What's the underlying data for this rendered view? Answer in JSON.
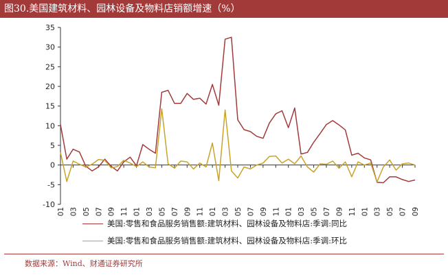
{
  "figure": {
    "title": "图30.美国建筑材料、园林设备及物料店销额增速（%）",
    "source": "数据来源：Wind、财通证券研究所"
  },
  "colors": {
    "title_bg": "#a23a3a",
    "series_yoy": "#a23a3a",
    "series_mom": "#c8a328"
  },
  "chart_data": {
    "type": "line",
    "title": "",
    "xlabel": "",
    "ylabel": "",
    "ylim": [
      -10,
      35
    ],
    "yticks": [
      -10,
      -5,
      0,
      5,
      10,
      15,
      20,
      25,
      30,
      35
    ],
    "xtick_labels": [
      "2019-01",
      "2019-03",
      "2019-05",
      "2019-07",
      "2019-09",
      "2019-11",
      "2020-01",
      "2020-03",
      "2020-05",
      "2020-07",
      "2020-09",
      "2020-11",
      "2021-01",
      "2021-03",
      "2021-05",
      "2021-07",
      "2021-09",
      "2021-11",
      "2022-01",
      "2022-03",
      "2022-05",
      "2022-07",
      "2022-09",
      "2022-11",
      "2023-01",
      "2023-03",
      "2023-05",
      "2023-07",
      "2023-09"
    ],
    "x": [
      "2019-01",
      "2019-02",
      "2019-03",
      "2019-04",
      "2019-05",
      "2019-06",
      "2019-07",
      "2019-08",
      "2019-09",
      "2019-10",
      "2019-11",
      "2019-12",
      "2020-01",
      "2020-02",
      "2020-03",
      "2020-04",
      "2020-05",
      "2020-06",
      "2020-07",
      "2020-08",
      "2020-09",
      "2020-10",
      "2020-11",
      "2020-12",
      "2021-01",
      "2021-02",
      "2021-03",
      "2021-04",
      "2021-05",
      "2021-06",
      "2021-07",
      "2021-08",
      "2021-09",
      "2021-10",
      "2021-11",
      "2021-12",
      "2022-01",
      "2022-02",
      "2022-03",
      "2022-04",
      "2022-05",
      "2022-06",
      "2022-07",
      "2022-08",
      "2022-09",
      "2022-10",
      "2022-11",
      "2022-12",
      "2023-01",
      "2023-02",
      "2023-03",
      "2023-04",
      "2023-05",
      "2023-06",
      "2023-07",
      "2023-08",
      "2023-09"
    ],
    "legend_position": "bottom",
    "series": [
      {
        "name": "美国:零售和食品服务销售额:建筑材料、园林设备及物料店:季调:同比",
        "values": [
          10.3,
          1.5,
          4.0,
          3.3,
          -0.3,
          -1.5,
          -0.5,
          1.5,
          -0.3,
          -1.5,
          0.8,
          2.0,
          -0.2,
          5.2,
          4.0,
          3.0,
          18.5,
          19.0,
          15.7,
          15.7,
          18.2,
          16.7,
          17.0,
          15.5,
          20.5,
          15.2,
          32.0,
          32.5,
          11.5,
          9.0,
          8.5,
          7.3,
          6.8,
          10.7,
          13.0,
          13.8,
          9.5,
          14.5,
          2.8,
          3.2,
          5.8,
          8.0,
          10.3,
          11.3,
          10.2,
          8.9,
          2.5,
          3.0,
          1.8,
          1.3,
          -4.4,
          -4.5,
          -3.0,
          -3.0,
          -3.7,
          -4.2,
          -3.8
        ]
      },
      {
        "name": "美国:零售和食品服务销售额:建筑材料、园林设备及物料店:季调:环比",
        "values": [
          3.2,
          -4.2,
          1.0,
          0.2,
          -0.5,
          0.2,
          1.4,
          1.2,
          -0.7,
          -0.4,
          1.2,
          0.5,
          -0.4,
          0.8,
          -0.5,
          -0.7,
          14.3,
          0.3,
          -0.8,
          1.0,
          0.8,
          -1.0,
          0.5,
          -0.5,
          5.6,
          -4.0,
          14.0,
          -1.5,
          -3.3,
          -0.5,
          -1.0,
          0.0,
          0.5,
          2.2,
          2.3,
          0.5,
          1.5,
          0.3,
          2.3,
          -0.5,
          -1.8,
          0.3,
          0.2,
          1.0,
          -0.8,
          0.8,
          -3.0,
          0.8,
          0.0,
          0.5,
          -4.3,
          -0.5,
          1.3,
          -1.3,
          0.3,
          0.5,
          0.0
        ]
      }
    ]
  }
}
